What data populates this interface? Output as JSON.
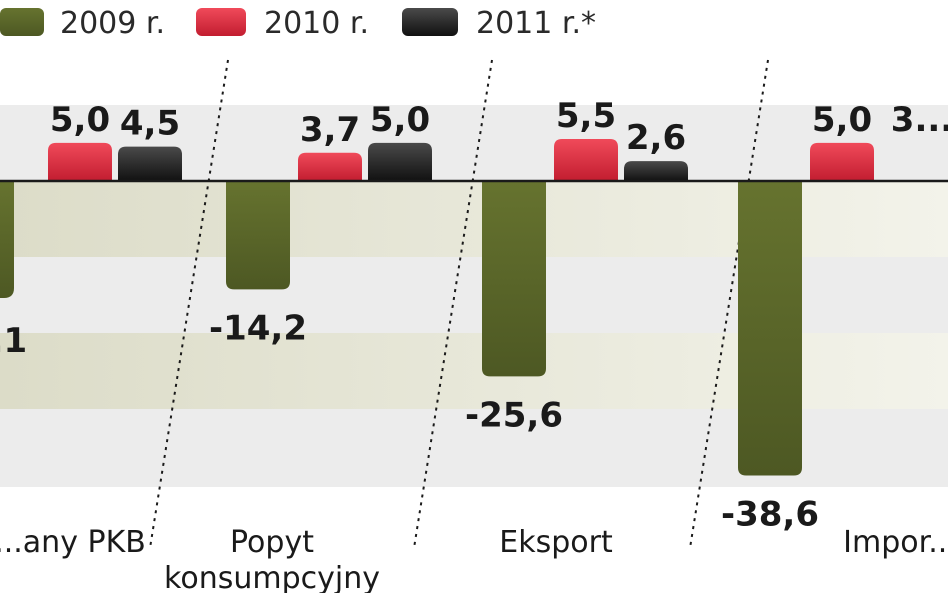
{
  "chart_data": {
    "type": "bar",
    "title": "",
    "xlabel": "",
    "ylabel": "",
    "legend_position": "top",
    "categories": [
      [
        "...any PKB"
      ],
      [
        "Popyt",
        "konsumpcyjny"
      ],
      [
        "Eksport"
      ],
      [
        "Impor..."
      ]
    ],
    "series": [
      {
        "name": "2009 r.",
        "color": "#5d6b2c",
        "values": [
          null,
          -14.2,
          -25.6,
          -38.6
        ],
        "labels": [
          "...1",
          "-14,2",
          "-25,6",
          "-38,6"
        ]
      },
      {
        "name": "2010 r.",
        "color": "#d42a3c",
        "values": [
          5.0,
          3.7,
          5.5,
          5.0
        ],
        "labels": [
          "5,0",
          "3,7",
          "5,5",
          "5,0"
        ]
      },
      {
        "name": "2011 r.*",
        "color": "#222222",
        "values": [
          4.5,
          5.0,
          2.6,
          null
        ],
        "labels": [
          "4,5",
          "5,0",
          "2,6",
          "3..."
        ]
      }
    ],
    "ylim": [
      -42,
      8
    ],
    "grid": true
  }
}
